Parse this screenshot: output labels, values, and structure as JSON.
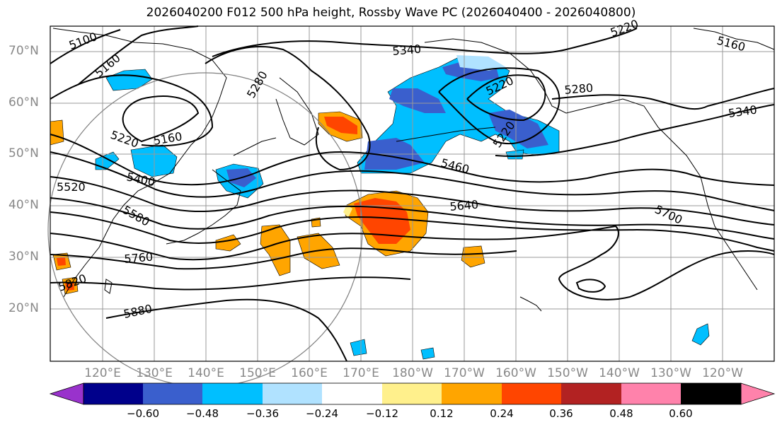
{
  "title": "2026040200 F012 500 hPa height, Rossby Wave PC (2026040400 - 2026040800)",
  "lat_labels": [
    "70°N",
    "60°N",
    "50°N",
    "40°N",
    "30°N",
    "20°N"
  ],
  "lon_labels": [
    "120°E",
    "130°E",
    "140°E",
    "150°E",
    "160°E",
    "170°E",
    "180°W",
    "170°W",
    "160°W",
    "150°W",
    "140°W",
    "130°W",
    "120°W"
  ],
  "contour_labels": [
    "5100",
    "5160",
    "5160",
    "5220",
    "5280",
    "5340",
    "5220",
    "5280",
    "5340",
    "5160",
    "5220",
    "5220",
    "5400",
    "5460",
    "5520",
    "5580",
    "5640",
    "5700",
    "5760",
    "5820",
    "5880"
  ],
  "colorbar": {
    "ticks": [
      "−0.60",
      "−0.48",
      "−0.36",
      "−0.24",
      "−0.12",
      "0.12",
      "0.24",
      "0.36",
      "0.48",
      "0.60"
    ],
    "colors": [
      "#9932cc",
      "#00008b",
      "#3a5fcd",
      "#00bfff",
      "#b0e2ff",
      "#ffffff",
      "#fff08c",
      "#ffa500",
      "#ff4500",
      "#b22222",
      "#ff82ab"
    ]
  },
  "colors": {
    "neg_strong": "#3a5fcd",
    "neg_mid": "#00bfff",
    "neg_weak": "#b0e2ff",
    "pos_weak": "#fff08c",
    "pos_mid": "#ffa500",
    "pos_strong": "#ff4500",
    "pos_max": "#b22222"
  }
}
